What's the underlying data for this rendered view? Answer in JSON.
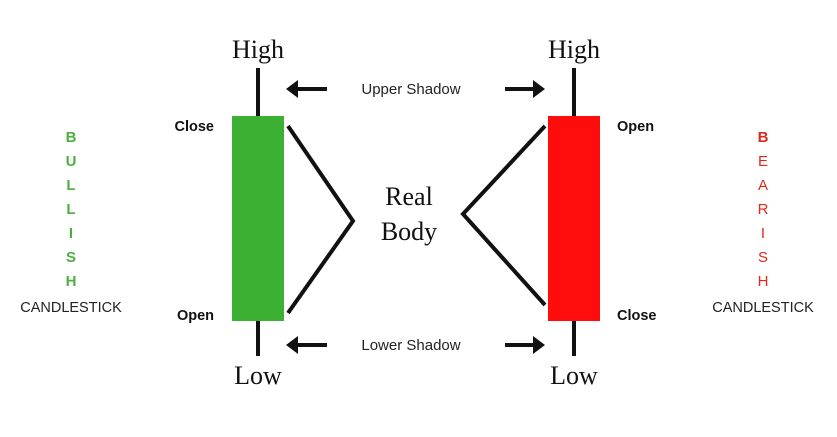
{
  "bullish": {
    "letters": [
      "B",
      "U",
      "L",
      "L",
      "I",
      "S",
      "H"
    ],
    "caption": "CANDLESTICK",
    "top_label": "High",
    "bottom_label": "Low",
    "body_top_label": "Close",
    "body_bottom_label": "Open",
    "body_color": "#3bb033",
    "letter_color": "#4caf3f"
  },
  "bearish": {
    "letters": [
      "B",
      "E",
      "A",
      "R",
      "I",
      "S",
      "H"
    ],
    "caption": "CANDLESTICK",
    "top_label": "High",
    "bottom_label": "Low",
    "body_top_label": "Open",
    "body_bottom_label": "Close",
    "body_color": "#ff0d0d",
    "letter_color": "#d92a1c"
  },
  "labels": {
    "upper_shadow": "Upper Shadow",
    "lower_shadow": "Lower Shadow",
    "real_body_line1": "Real",
    "real_body_line2": "Body"
  },
  "icons": {
    "left_arrow": "left-arrow-icon",
    "right_arrow": "right-arrow-icon"
  }
}
